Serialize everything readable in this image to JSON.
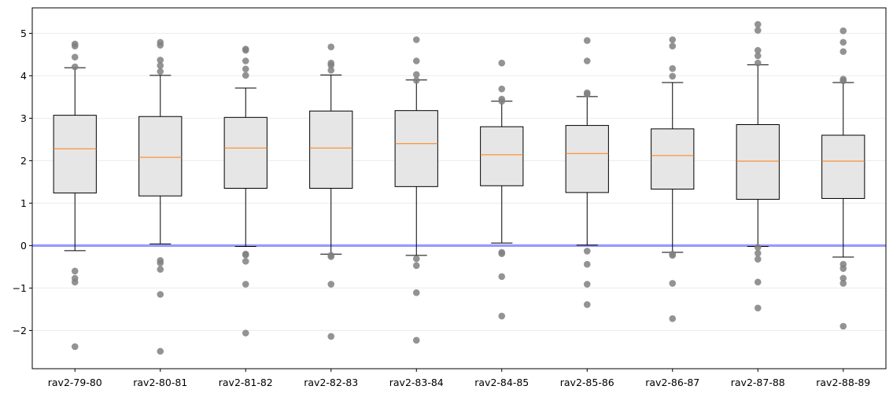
{
  "chart_data": {
    "type": "boxplot",
    "title": "",
    "xlabel": "",
    "ylabel": "",
    "ylim": [
      -2.9,
      5.6
    ],
    "yticks": [
      {
        "value": 5,
        "label": "5"
      },
      {
        "value": 4,
        "label": "4"
      },
      {
        "value": 3,
        "label": "3"
      },
      {
        "value": 2,
        "label": "2"
      },
      {
        "value": 1,
        "label": "1"
      },
      {
        "value": 0,
        "label": "0"
      },
      {
        "value": -1,
        "label": "−1"
      },
      {
        "value": -2,
        "label": "−2"
      }
    ],
    "grid": "horizontal",
    "reference_line": {
      "y": 0,
      "color": "#9999ff"
    },
    "colors": {
      "box_fill": "#e6e6e6",
      "median": "#ff7f0e",
      "outlier": "#808080",
      "grid": "#ebebeb"
    },
    "categories": [
      "rav2-79-80",
      "rav2-80-81",
      "rav2-81-82",
      "rav2-82-83",
      "rav2-83-84",
      "rav2-84-85",
      "rav2-85-86",
      "rav2-86-87",
      "rav2-87-88",
      "rav2-88-89"
    ],
    "boxes": [
      {
        "whisker_low": -0.12,
        "q1": 1.24,
        "median": 2.28,
        "q3": 3.07,
        "whisker_high": 4.19,
        "outliers": [
          4.75,
          4.7,
          4.44,
          4.21,
          -0.6,
          -0.77,
          -0.86,
          -2.38
        ]
      },
      {
        "whisker_low": 0.04,
        "q1": 1.17,
        "median": 2.08,
        "q3": 3.04,
        "whisker_high": 4.01,
        "outliers": [
          4.79,
          4.72,
          4.37,
          4.24,
          4.1,
          -0.35,
          -0.41,
          -0.56,
          -1.15,
          -2.49
        ]
      },
      {
        "whisker_low": -0.02,
        "q1": 1.35,
        "median": 2.3,
        "q3": 3.02,
        "whisker_high": 3.71,
        "outliers": [
          4.63,
          4.6,
          4.35,
          4.16,
          4.01,
          -0.2,
          -0.22,
          -0.37,
          -0.91,
          -2.06
        ]
      },
      {
        "whisker_low": -0.2,
        "q1": 1.35,
        "median": 2.3,
        "q3": 3.17,
        "whisker_high": 4.02,
        "outliers": [
          4.68,
          4.3,
          4.25,
          4.13,
          -0.23,
          -0.26,
          -0.91,
          -2.14
        ]
      },
      {
        "whisker_low": -0.23,
        "q1": 1.39,
        "median": 2.4,
        "q3": 3.18,
        "whisker_high": 3.9,
        "outliers": [
          4.85,
          4.35,
          4.03,
          3.89,
          -0.31,
          -0.47,
          -1.11,
          -2.23
        ]
      },
      {
        "whisker_low": 0.06,
        "q1": 1.41,
        "median": 2.14,
        "q3": 2.8,
        "whisker_high": 3.4,
        "outliers": [
          4.3,
          3.69,
          3.45,
          3.4,
          -0.16,
          -0.19,
          -0.73,
          -1.66
        ]
      },
      {
        "whisker_low": 0.01,
        "q1": 1.25,
        "median": 2.17,
        "q3": 2.83,
        "whisker_high": 3.51,
        "outliers": [
          4.83,
          4.35,
          3.6,
          3.57,
          -0.13,
          -0.44,
          -0.91,
          -1.39
        ]
      },
      {
        "whisker_low": -0.16,
        "q1": 1.33,
        "median": 2.12,
        "q3": 2.75,
        "whisker_high": 3.84,
        "outliers": [
          4.85,
          4.7,
          4.17,
          3.99,
          -0.2,
          -0.23,
          -0.89,
          -1.72
        ]
      },
      {
        "whisker_low": -0.02,
        "q1": 1.09,
        "median": 1.99,
        "q3": 2.85,
        "whisker_high": 4.26,
        "outliers": [
          5.21,
          5.07,
          4.6,
          4.47,
          4.3,
          -0.04,
          -0.18,
          -0.32,
          -0.86,
          -1.47
        ]
      },
      {
        "whisker_low": -0.27,
        "q1": 1.11,
        "median": 1.99,
        "q3": 2.6,
        "whisker_high": 3.84,
        "outliers": [
          5.06,
          4.79,
          4.57,
          3.92,
          3.88,
          -0.44,
          -0.54,
          -0.77,
          -0.89,
          -1.9
        ]
      }
    ]
  }
}
